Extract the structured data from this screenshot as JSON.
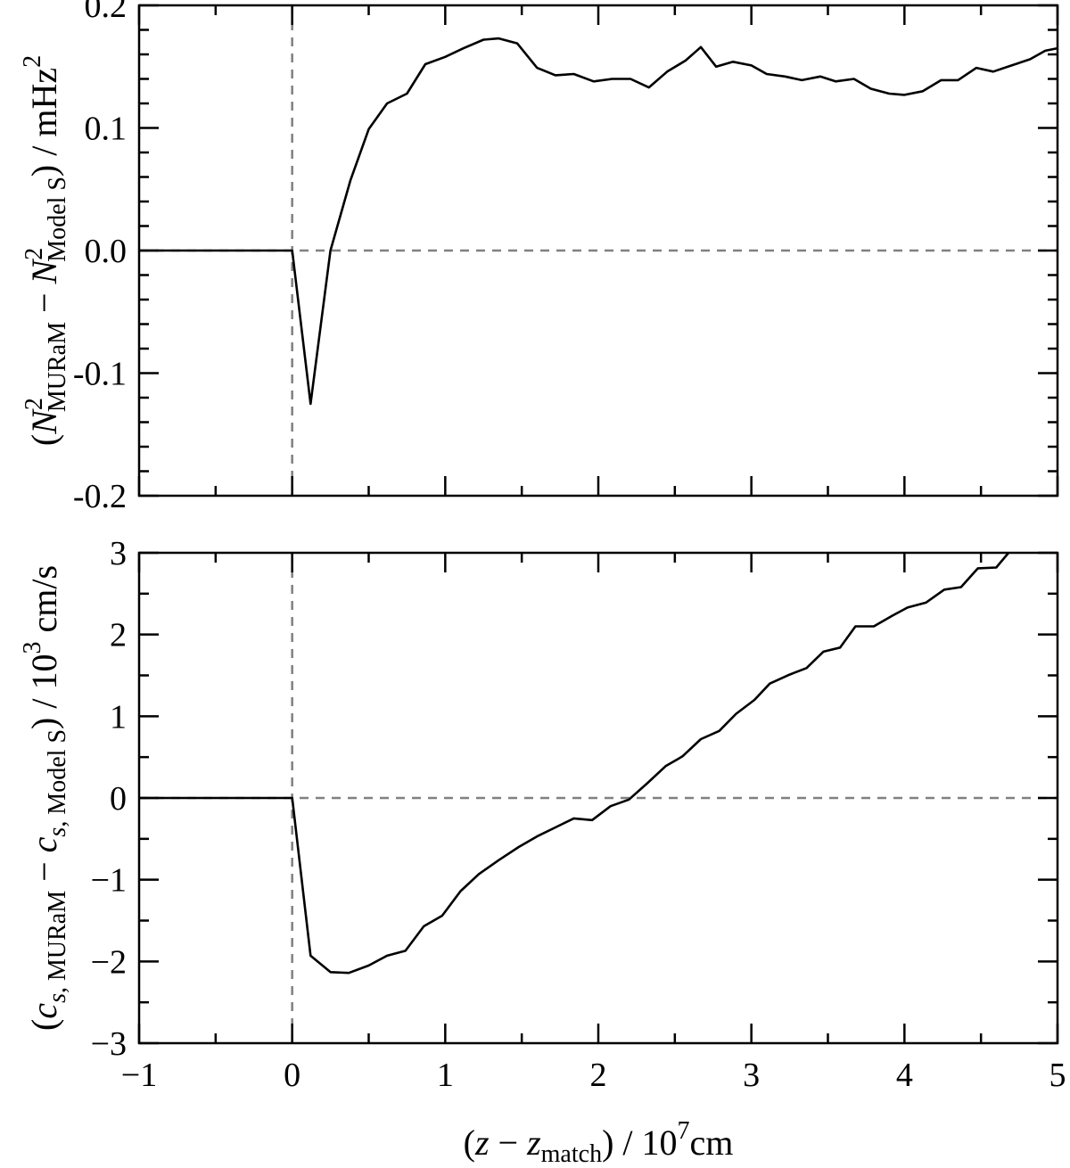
{
  "chart_data": [
    {
      "type": "line",
      "panel": "top",
      "xlim": [
        -1,
        5
      ],
      "ylim": [
        -0.2,
        0.2
      ],
      "xticks": [
        -1,
        0,
        1,
        2,
        3,
        4,
        5
      ],
      "xtick_labels": [],
      "yticks": [
        -0.2,
        -0.1,
        0.0,
        0.1,
        0.2
      ],
      "ytick_labels": [
        "-0.2",
        "-0.1",
        "0.0",
        "0.1",
        "0.2"
      ],
      "ylabel": "(N²MURaM − N²Model S) / mHz²",
      "ylabel_parts": {
        "open": "(",
        "sym1": "N",
        "sup1": "2",
        "sub1": "MURaM",
        "minus": " − ",
        "sym2": "N",
        "sup2": "2",
        "sub2": "Model S",
        "close": ") / mHz",
        "unit_sup": "2"
      },
      "reference_lines": {
        "x": 0,
        "y": 0
      },
      "grid": false,
      "series": [
        {
          "x": [
            -1.0,
            0.0,
            0.12,
            0.25,
            0.38,
            0.5,
            0.62,
            0.75,
            0.87,
            1.0,
            1.12,
            1.25,
            1.35,
            1.47,
            1.6,
            1.72,
            1.84,
            1.97,
            2.09,
            2.21,
            2.33,
            2.45,
            2.57,
            2.67,
            2.77,
            2.88,
            3.0,
            3.1,
            3.22,
            3.33,
            3.45,
            3.55,
            3.67,
            3.78,
            3.9,
            4.0,
            4.12,
            4.24,
            4.35,
            4.47,
            4.58,
            4.7,
            4.82,
            4.92,
            5.0
          ],
          "y": [
            0.0,
            0.0,
            -0.125,
            0.0,
            0.057,
            0.099,
            0.12,
            0.128,
            0.152,
            0.158,
            0.165,
            0.172,
            0.173,
            0.169,
            0.149,
            0.143,
            0.144,
            0.138,
            0.14,
            0.14,
            0.133,
            0.146,
            0.155,
            0.166,
            0.15,
            0.154,
            0.151,
            0.144,
            0.142,
            0.139,
            0.142,
            0.138,
            0.14,
            0.132,
            0.128,
            0.127,
            0.13,
            0.139,
            0.139,
            0.149,
            0.146,
            0.151,
            0.156,
            0.163,
            0.165
          ]
        }
      ]
    },
    {
      "type": "line",
      "panel": "bottom",
      "xlim": [
        -1,
        5
      ],
      "ylim": [
        -3,
        3
      ],
      "xticks": [
        -1,
        0,
        1,
        2,
        3,
        4,
        5
      ],
      "xtick_labels": [
        "−1",
        "0",
        "1",
        "2",
        "3",
        "4",
        "5"
      ],
      "yticks": [
        -3,
        -2,
        -1,
        0,
        1,
        2,
        3
      ],
      "ytick_labels": [
        "−3",
        "−2",
        "−1",
        "0",
        "1",
        "2",
        "3"
      ],
      "ylabel": "(cs, MURaM − cs, Model S) / 10³ cm/s",
      "ylabel_parts": {
        "open": "(",
        "sym1": "c",
        "sub1_italic": "s",
        "sub1": ", MURaM",
        "minus": " − ",
        "sym2": "c",
        "sub2_italic": "s",
        "sub2": ", Model S",
        "close": ") / 10",
        "sup": "3",
        "unit": " cm/s"
      },
      "xlabel": "(z − zmatch) / 10⁷cm",
      "xlabel_parts": {
        "open": "(",
        "sym1": "z",
        "minus": " − ",
        "sym2": "z",
        "sub": "match",
        "close": ") / 10",
        "sup": "7",
        "unit": "cm"
      },
      "reference_lines": {
        "x": 0,
        "y": 0
      },
      "grid": false,
      "series": [
        {
          "x": [
            -1.0,
            0.0,
            0.12,
            0.25,
            0.37,
            0.5,
            0.62,
            0.74,
            0.86,
            0.98,
            1.1,
            1.22,
            1.35,
            1.48,
            1.6,
            1.72,
            1.84,
            1.96,
            2.08,
            2.2,
            2.32,
            2.44,
            2.55,
            2.67,
            2.79,
            2.9,
            3.02,
            3.12,
            3.25,
            3.36,
            3.47,
            3.58,
            3.68,
            3.8,
            3.92,
            4.02,
            4.14,
            4.26,
            4.37,
            4.48,
            4.6,
            4.68
          ],
          "y": [
            0.0,
            0.0,
            -1.93,
            -2.13,
            -2.14,
            -2.05,
            -1.93,
            -1.87,
            -1.57,
            -1.44,
            -1.14,
            -0.93,
            -0.76,
            -0.6,
            -0.47,
            -0.36,
            -0.25,
            -0.27,
            -0.1,
            -0.02,
            0.18,
            0.39,
            0.51,
            0.72,
            0.82,
            1.03,
            1.2,
            1.4,
            1.51,
            1.59,
            1.79,
            1.84,
            2.1,
            2.1,
            2.23,
            2.33,
            2.39,
            2.55,
            2.58,
            2.81,
            2.82,
            3.0
          ]
        }
      ]
    }
  ]
}
